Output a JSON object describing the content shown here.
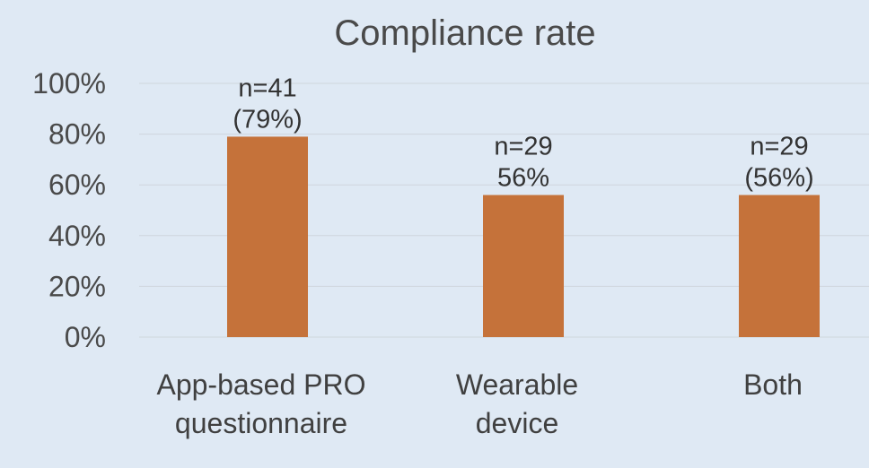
{
  "chart_data": {
    "type": "bar",
    "title": "Compliance rate",
    "categories": [
      [
        "App-based PRO",
        "questionnaire"
      ],
      [
        "Wearable",
        "device"
      ],
      [
        "Both"
      ]
    ],
    "values": [
      79,
      56,
      56
    ],
    "data_labels": [
      [
        "n=41",
        "(79%)"
      ],
      [
        "n=29",
        "56%"
      ],
      [
        "n=29",
        "(56%)"
      ]
    ],
    "ylim": [
      0,
      100
    ],
    "yticks": [
      "0%",
      "20%",
      "40%",
      "60%",
      "80%",
      "100%"
    ],
    "ytick_values": [
      0,
      20,
      40,
      60,
      80,
      100
    ],
    "grid": true,
    "legend": "none",
    "colors": {
      "bar": "#c5723a",
      "background": "#dfe9f4",
      "grid": "#cfd6dd"
    }
  }
}
